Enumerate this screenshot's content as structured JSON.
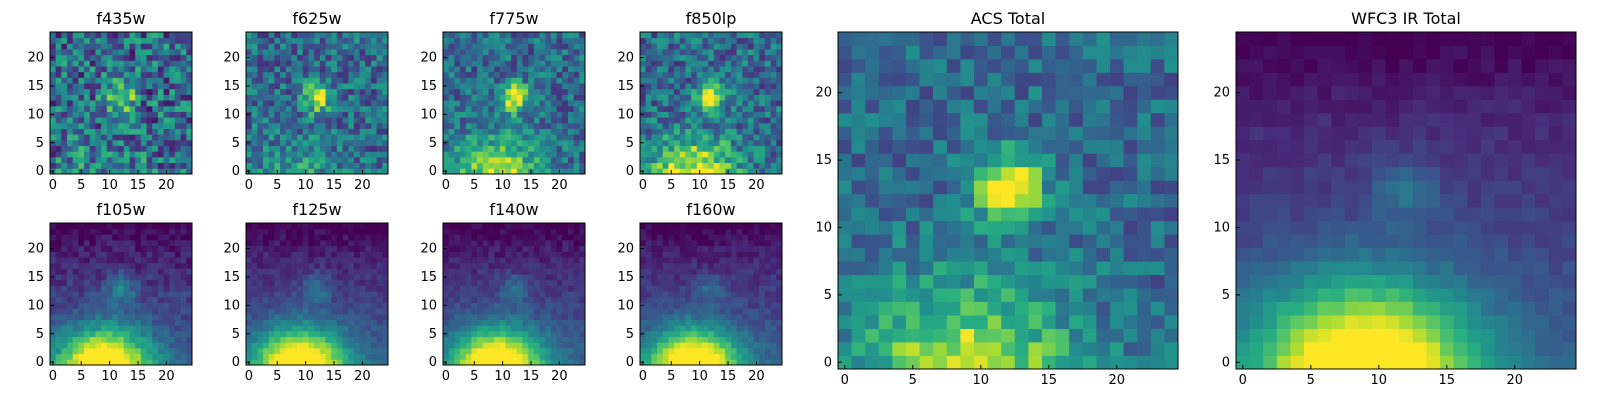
{
  "figure": {
    "colormap": "viridis"
  },
  "chart_data": [
    {
      "type": "heatmap",
      "title": "f435w",
      "xticks": [
        "0",
        "5",
        "10",
        "15",
        "20"
      ],
      "yticks": [
        "0",
        "5",
        "10",
        "15",
        "20"
      ],
      "xlim": [
        0,
        25
      ],
      "ylim": [
        0,
        25
      ],
      "grid_size": 25,
      "pattern": "noise",
      "blob_center": [
        12,
        13
      ],
      "blob_strength": 0.55,
      "bottom_glow": 0.15,
      "noise": 0.3
    },
    {
      "type": "heatmap",
      "title": "f625w",
      "xticks": [
        "0",
        "5",
        "10",
        "15",
        "20"
      ],
      "yticks": [
        "0",
        "5",
        "10",
        "15",
        "20"
      ],
      "xlim": [
        0,
        25
      ],
      "ylim": [
        0,
        25
      ],
      "grid_size": 25,
      "pattern": "noise_blob",
      "blob_center": [
        12,
        13
      ],
      "blob_strength": 0.6,
      "bottom_glow": 0.2,
      "noise": 0.22
    },
    {
      "type": "heatmap",
      "title": "f775w",
      "xticks": [
        "0",
        "5",
        "10",
        "15",
        "20"
      ],
      "yticks": [
        "0",
        "5",
        "10",
        "15",
        "20"
      ],
      "xlim": [
        0,
        25
      ],
      "ylim": [
        0,
        25
      ],
      "grid_size": 25,
      "pattern": "noise_blob_glow",
      "blob_center": [
        12,
        13
      ],
      "blob_strength": 0.7,
      "bottom_glow": 0.55,
      "noise": 0.2
    },
    {
      "type": "heatmap",
      "title": "f850lp",
      "xticks": [
        "0",
        "5",
        "10",
        "15",
        "20"
      ],
      "yticks": [
        "0",
        "5",
        "10",
        "15",
        "20"
      ],
      "xlim": [
        0,
        25
      ],
      "ylim": [
        0,
        25
      ],
      "grid_size": 25,
      "pattern": "noise_blob_glow",
      "blob_center": [
        12,
        13
      ],
      "blob_strength": 0.6,
      "bottom_glow": 0.65,
      "noise": 0.22
    },
    {
      "type": "heatmap",
      "title": "ACS Total",
      "xticks": [
        "0",
        "5",
        "10",
        "15",
        "20"
      ],
      "yticks": [
        "0",
        "5",
        "10",
        "15",
        "20"
      ],
      "xlim": [
        0,
        25
      ],
      "ylim": [
        0,
        25
      ],
      "grid_size": 25,
      "pattern": "noise_blob_glow",
      "blob_center": [
        12,
        13
      ],
      "blob_strength": 0.75,
      "bottom_glow": 0.6,
      "noise": 0.16
    },
    {
      "type": "heatmap",
      "title": "f105w",
      "xticks": [
        "0",
        "5",
        "10",
        "15",
        "20"
      ],
      "yticks": [
        "0",
        "5",
        "10",
        "15",
        "20"
      ],
      "xlim": [
        0,
        25
      ],
      "ylim": [
        0,
        25
      ],
      "grid_size": 25,
      "pattern": "smooth_glow",
      "blob_center": [
        12,
        13
      ],
      "blob_strength": 0.3,
      "bottom_glow": 1.0,
      "noise": 0.08
    },
    {
      "type": "heatmap",
      "title": "f125w",
      "xticks": [
        "0",
        "5",
        "10",
        "15",
        "20"
      ],
      "yticks": [
        "0",
        "5",
        "10",
        "15",
        "20"
      ],
      "xlim": [
        0,
        25
      ],
      "ylim": [
        0,
        25
      ],
      "grid_size": 25,
      "pattern": "smooth_glow",
      "blob_center": [
        12,
        13
      ],
      "blob_strength": 0.22,
      "bottom_glow": 1.0,
      "noise": 0.06
    },
    {
      "type": "heatmap",
      "title": "f140w",
      "xticks": [
        "0",
        "5",
        "10",
        "15",
        "20"
      ],
      "yticks": [
        "0",
        "5",
        "10",
        "15",
        "20"
      ],
      "xlim": [
        0,
        25
      ],
      "ylim": [
        0,
        25
      ],
      "grid_size": 25,
      "pattern": "smooth_glow",
      "blob_center": [
        12,
        13
      ],
      "blob_strength": 0.2,
      "bottom_glow": 1.0,
      "noise": 0.06
    },
    {
      "type": "heatmap",
      "title": "f160w",
      "xticks": [
        "0",
        "5",
        "10",
        "15",
        "20"
      ],
      "yticks": [
        "0",
        "5",
        "10",
        "15",
        "20"
      ],
      "xlim": [
        0,
        25
      ],
      "ylim": [
        0,
        25
      ],
      "grid_size": 25,
      "pattern": "smooth_glow",
      "blob_center": [
        12,
        13
      ],
      "blob_strength": 0.18,
      "bottom_glow": 1.0,
      "noise": 0.06
    },
    {
      "type": "heatmap",
      "title": "WFC3 IR Total",
      "xticks": [
        "0",
        "5",
        "10",
        "15",
        "20"
      ],
      "yticks": [
        "0",
        "5",
        "10",
        "15",
        "20"
      ],
      "xlim": [
        0,
        25
      ],
      "ylim": [
        0,
        25
      ],
      "grid_size": 25,
      "pattern": "smooth_glow",
      "blob_center": [
        12,
        13
      ],
      "blob_strength": 0.2,
      "bottom_glow": 1.0,
      "noise": 0.04
    }
  ]
}
